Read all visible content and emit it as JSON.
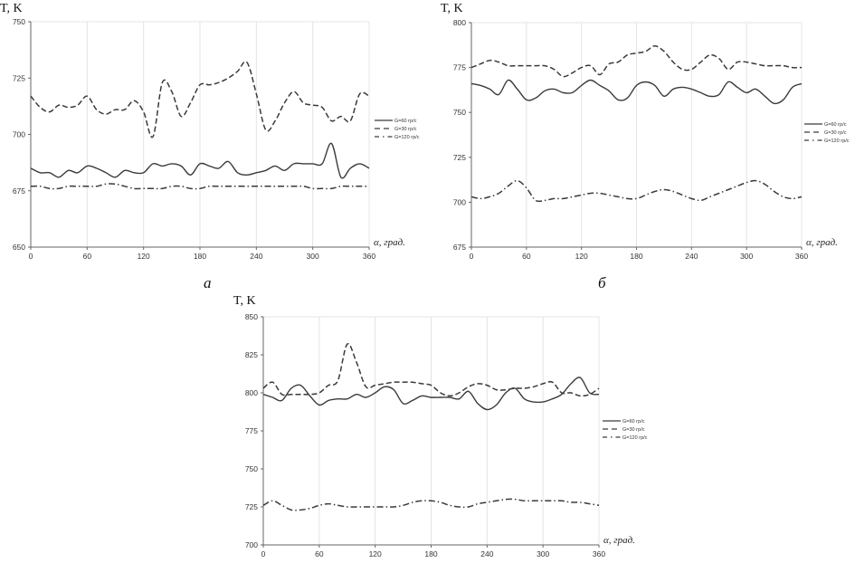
{
  "chart_data": [
    {
      "type": "line",
      "caption": "а",
      "ylabel": "T, K",
      "xlabel": "α, град.",
      "xlim": [
        0,
        360
      ],
      "ylim": [
        650,
        750
      ],
      "xticks": [
        "0",
        "60",
        "120",
        "180",
        "240",
        "300",
        "360"
      ],
      "yticks": [
        "650",
        "675",
        "700",
        "725",
        "750"
      ],
      "grid": "vertical",
      "legend": "right",
      "x": [
        0,
        10,
        20,
        30,
        40,
        50,
        60,
        70,
        80,
        90,
        100,
        110,
        120,
        130,
        140,
        150,
        160,
        170,
        180,
        190,
        200,
        210,
        220,
        230,
        240,
        250,
        260,
        270,
        280,
        290,
        300,
        310,
        320,
        330,
        340,
        350,
        360
      ],
      "series": [
        {
          "name": "G=60 гр/с",
          "style": "solid",
          "values": [
            685,
            683,
            683,
            681,
            684,
            683,
            686,
            685,
            683,
            681,
            684,
            683,
            683,
            687,
            686,
            687,
            686,
            682,
            687,
            686,
            685,
            688,
            683,
            682,
            683,
            684,
            686,
            684,
            687,
            687,
            687,
            687,
            696,
            681,
            685,
            687,
            685
          ]
        },
        {
          "name": "G=30 гр/с",
          "style": "dashed",
          "values": [
            717,
            712,
            710,
            713,
            712,
            713,
            717,
            711,
            709,
            711,
            711,
            715,
            710,
            699,
            723,
            719,
            708,
            714,
            722,
            722,
            723,
            725,
            728,
            732,
            718,
            702,
            706,
            714,
            719,
            714,
            713,
            712,
            706,
            708,
            706,
            718,
            717
          ]
        },
        {
          "name": "G=120 гр/с",
          "style": "dash-dot",
          "values": [
            677,
            677,
            676,
            676,
            677,
            677,
            677,
            677,
            678,
            678,
            677,
            676,
            676,
            676,
            676,
            677,
            677,
            676,
            676,
            677,
            677,
            677,
            677,
            677,
            677,
            677,
            677,
            677,
            677,
            677,
            676,
            676,
            676,
            677,
            677,
            677,
            677
          ]
        }
      ]
    },
    {
      "type": "line",
      "caption": "б",
      "ylabel": "T, K",
      "xlabel": "α, град.",
      "xlim": [
        0,
        360
      ],
      "ylim": [
        675,
        800
      ],
      "xticks": [
        "0",
        "60",
        "120",
        "180",
        "240",
        "300",
        "360"
      ],
      "yticks": [
        "675",
        "700",
        "725",
        "750",
        "775",
        "800"
      ],
      "grid": "vertical",
      "legend": "right",
      "x": [
        0,
        10,
        20,
        30,
        40,
        50,
        60,
        70,
        80,
        90,
        100,
        110,
        120,
        130,
        140,
        150,
        160,
        170,
        180,
        190,
        200,
        210,
        220,
        230,
        240,
        250,
        260,
        270,
        280,
        290,
        300,
        310,
        320,
        330,
        340,
        350,
        360
      ],
      "series": [
        {
          "name": "G=60 гр/с",
          "style": "solid",
          "values": [
            766,
            765,
            763,
            760,
            768,
            763,
            757,
            758,
            762,
            763,
            761,
            761,
            765,
            768,
            765,
            762,
            757,
            758,
            765,
            767,
            765,
            759,
            763,
            764,
            763,
            761,
            759,
            760,
            767,
            764,
            761,
            763,
            759,
            755,
            757,
            764,
            766
          ]
        },
        {
          "name": "G=30 гр/с",
          "style": "dashed",
          "values": [
            775,
            777,
            779,
            778,
            776,
            776,
            776,
            776,
            776,
            774,
            770,
            772,
            775,
            776,
            771,
            777,
            778,
            782,
            783,
            784,
            787,
            784,
            778,
            774,
            774,
            778,
            782,
            780,
            774,
            778,
            778,
            777,
            776,
            776,
            776,
            775,
            775
          ]
        },
        {
          "name": "G=120 гр/с",
          "style": "dash-dot",
          "values": [
            703,
            702,
            703,
            705,
            709,
            712,
            708,
            701,
            701,
            702,
            702,
            703,
            704,
            705,
            705,
            704,
            703,
            702,
            702,
            704,
            706,
            707,
            706,
            704,
            702,
            701,
            703,
            705,
            707,
            709,
            711,
            712,
            710,
            706,
            703,
            702,
            703
          ]
        }
      ]
    },
    {
      "type": "line",
      "caption": "",
      "ylabel": "T, K",
      "xlabel": "α, град.",
      "xlim": [
        0,
        360
      ],
      "ylim": [
        700,
        850
      ],
      "xticks": [
        "0",
        "60",
        "120",
        "180",
        "240",
        "300",
        "360"
      ],
      "yticks": [
        "700",
        "725",
        "750",
        "775",
        "800",
        "825",
        "850"
      ],
      "grid": "vertical",
      "legend": "right",
      "x": [
        0,
        10,
        20,
        30,
        40,
        50,
        60,
        70,
        80,
        90,
        100,
        110,
        120,
        130,
        140,
        150,
        160,
        170,
        180,
        190,
        200,
        210,
        220,
        230,
        240,
        250,
        260,
        270,
        280,
        290,
        300,
        310,
        320,
        330,
        340,
        350,
        360
      ],
      "series": [
        {
          "name": "G=60 гр/с",
          "style": "solid",
          "values": [
            799,
            797,
            795,
            803,
            805,
            798,
            792,
            795,
            796,
            796,
            799,
            797,
            800,
            804,
            802,
            793,
            795,
            798,
            797,
            797,
            797,
            796,
            801,
            793,
            789,
            792,
            800,
            803,
            796,
            794,
            794,
            796,
            799,
            806,
            810,
            800,
            799
          ]
        },
        {
          "name": "G=30 гр/с",
          "style": "dashed",
          "values": [
            803,
            807,
            799,
            799,
            799,
            799,
            800,
            805,
            808,
            832,
            820,
            804,
            805,
            806,
            807,
            807,
            807,
            806,
            805,
            800,
            798,
            800,
            804,
            806,
            805,
            802,
            802,
            803,
            803,
            804,
            806,
            807,
            800,
            800,
            798,
            799,
            803
          ]
        },
        {
          "name": "G=120 гр/с",
          "style": "dash-dot",
          "values": [
            726,
            729,
            726,
            723,
            723,
            724,
            726,
            727,
            726,
            725,
            725,
            725,
            725,
            725,
            725,
            726,
            728,
            729,
            729,
            728,
            726,
            725,
            725,
            727,
            728,
            729,
            730,
            730,
            729,
            729,
            729,
            729,
            729,
            728,
            728,
            727,
            726
          ]
        }
      ]
    }
  ]
}
